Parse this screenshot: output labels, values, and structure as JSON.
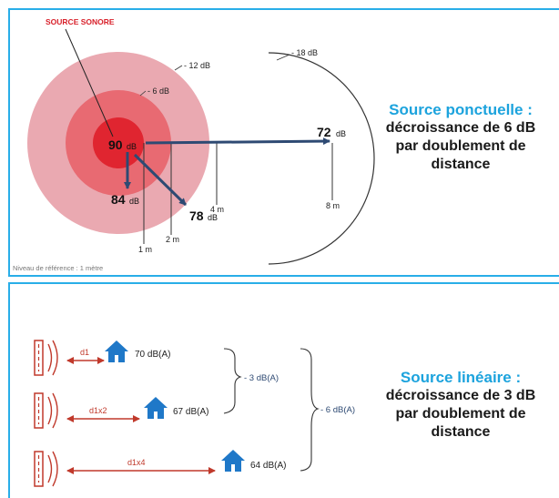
{
  "colors": {
    "panel_border": "#29aee8",
    "title_blue": "#1ca3dd",
    "arrow_navy": "#2e4a73",
    "arrow_red": "#c0392b",
    "house_blue": "#1f78c8",
    "ring_outer": "#e8a0a8",
    "ring_mid": "#e86a72",
    "ring_inner": "#e02530"
  },
  "point_source": {
    "source_label": "SOURCE SONORE",
    "level_labels": [
      "- 18 dB",
      "- 12 dB",
      "- 6 dB"
    ],
    "center": {
      "value": "90",
      "unit": "dB"
    },
    "levels": [
      {
        "value": "84",
        "unit": "dB"
      },
      {
        "value": "78",
        "unit": "dB"
      },
      {
        "value": "72",
        "unit": "dB"
      }
    ],
    "distance_labels": [
      "1 m",
      "2 m",
      "4 m",
      "8 m"
    ],
    "reference_note": "Niveau de référence : 1 mètre",
    "title_line1": "Source ponctuelle :",
    "title_line2": "décroissance de 6 dB",
    "title_line3": "par doublement de",
    "title_line4": "distance"
  },
  "line_source": {
    "distance_labels": [
      "d1",
      "d1x2",
      "d1x4"
    ],
    "level_labels": [
      "70 dB(A)",
      "67 dB(A)",
      "64 dB(A)"
    ],
    "brace_labels": [
      "- 3 dB(A)",
      "- 6 dB(A)"
    ],
    "title_line1": "Source linéaire :",
    "title_line2": "décroissance de 3 dB",
    "title_line3": "par doublement de",
    "title_line4": "distance"
  }
}
